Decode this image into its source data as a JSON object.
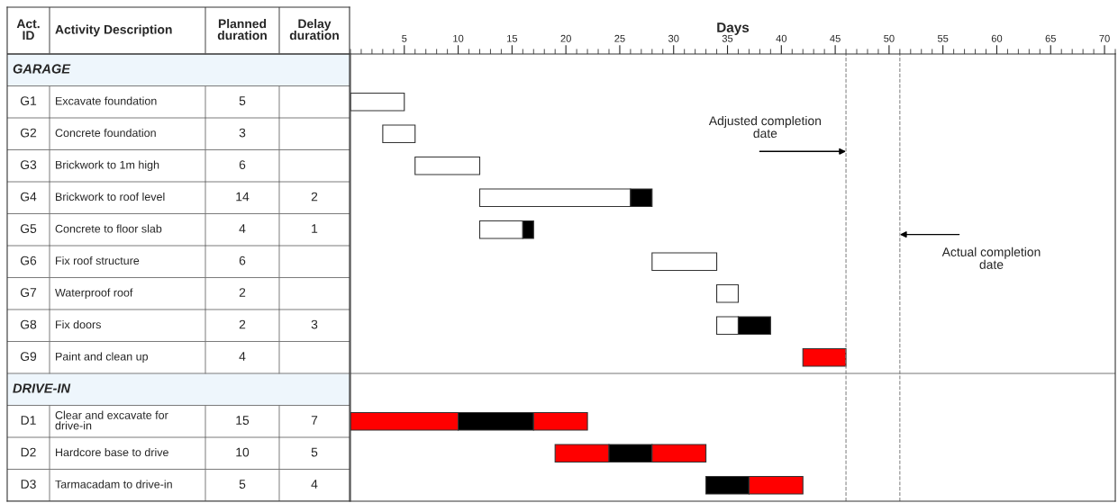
{
  "chart_data": [
    {
      "type": "other",
      "categories": [
        "Act.\nID",
        "Activity Description",
        "Planned\nduration",
        "Delay\nduration"
      ],
      "cell_labels": [
        [
          null,
          "GARAGE",
          null,
          null
        ],
        [
          "G1",
          "Excavate foundation",
          "5",
          null
        ],
        [
          "G2",
          "Concrete foundation",
          "3",
          null
        ],
        [
          "G3",
          "Brickwork to 1m high",
          "6",
          null
        ],
        [
          "G4",
          "Brickwork to roof level",
          "14",
          "2"
        ],
        [
          "G5",
          "Concrete to floor slab",
          "4",
          "1"
        ],
        [
          "G6",
          "Fix roof structure",
          "6",
          null
        ],
        [
          "G7",
          "Waterproof roof",
          "2",
          null
        ],
        [
          "G8",
          "Fix doors",
          "2",
          "3"
        ],
        [
          "G9",
          "Paint and clean up",
          "4",
          null
        ],
        [
          null,
          "DRIVE-IN",
          null,
          null
        ],
        [
          "D1",
          "Clear and excavate for\ndrive-in",
          "15",
          "7"
        ],
        [
          "D2",
          "Hardcore base to drive",
          "10",
          "5"
        ],
        [
          "D3",
          "Tarmacadam to drive-in",
          "5",
          "4"
        ]
      ]
    },
    {
      "type": "bar",
      "orientation": "horizontal",
      "xlabel": "Days",
      "categories": [
        null,
        null,
        null,
        null,
        null,
        null,
        null,
        null,
        null,
        null,
        null,
        null,
        null,
        null
      ],
      "series": [
        {
          "type": "bar",
          "base": [
            null,
            0,
            3,
            6,
            12,
            12,
            28,
            34,
            34,
            42,
            null,
            0,
            19,
            null
          ],
          "values": [
            null,
            5,
            3,
            6,
            14,
            4,
            6,
            2,
            2,
            4,
            null,
            10,
            5,
            null
          ],
          "colors": [
            null,
            "#ffffff",
            "#ffffff",
            "#ffffff",
            "#ffffff",
            "#ffffff",
            "#ffffff",
            "#ffffff",
            "#ffffff",
            "#ff0000",
            null,
            "#ff0000",
            "#ff0000",
            null
          ]
        },
        {
          "type": "bar",
          "base": [
            null,
            null,
            null,
            null,
            26,
            16,
            null,
            null,
            36,
            null,
            null,
            10,
            24,
            33
          ],
          "values": [
            null,
            null,
            null,
            null,
            2,
            1,
            null,
            null,
            3,
            null,
            null,
            7,
            4,
            4
          ],
          "color": "#000000"
        },
        {
          "type": "bar",
          "base": [
            null,
            null,
            null,
            null,
            null,
            null,
            null,
            null,
            null,
            null,
            null,
            17,
            28,
            37
          ],
          "values": [
            null,
            null,
            null,
            null,
            null,
            null,
            null,
            null,
            null,
            null,
            null,
            5,
            5,
            5
          ],
          "color": "#ff0000"
        }
      ],
      "xlim": [
        0,
        71
      ],
      "xticks": [
        5,
        10,
        15,
        20,
        25,
        30,
        35,
        40,
        45,
        50,
        55,
        60,
        65,
        70
      ],
      "ref_lines": [
        {
          "axis": "x",
          "value": 46,
          "label": "Adjusted completion\ndate",
          "color": "#888888",
          "line_style": "dashed"
        },
        {
          "axis": "x",
          "value": 51,
          "label": "Actual completion\ndate",
          "color": "#888888",
          "line_style": "dashed"
        }
      ]
    }
  ]
}
